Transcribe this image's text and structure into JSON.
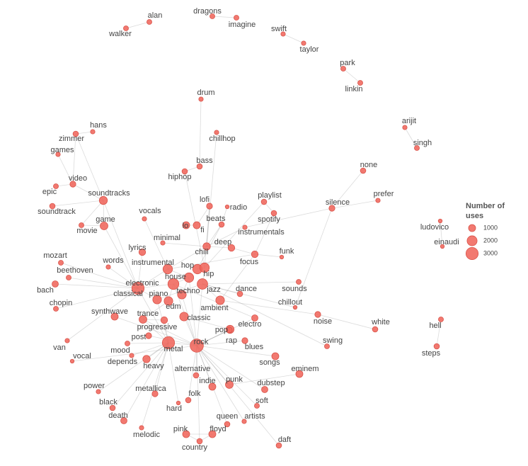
{
  "nodes": [
    {
      "label": "alan",
      "uses": 500
    },
    {
      "label": "walker",
      "uses": 500
    },
    {
      "label": "dragons",
      "uses": 500
    },
    {
      "label": "imagine",
      "uses": 500
    },
    {
      "label": "swift",
      "uses": 400
    },
    {
      "label": "taylor",
      "uses": 400
    },
    {
      "label": "park",
      "uses": 500
    },
    {
      "label": "linkin",
      "uses": 500
    },
    {
      "label": "arijit",
      "uses": 400
    },
    {
      "label": "singh",
      "uses": 500
    },
    {
      "label": "drum",
      "uses": 400
    },
    {
      "label": "chillhop",
      "uses": 400
    },
    {
      "label": "hans",
      "uses": 400
    },
    {
      "label": "zimmer",
      "uses": 600
    },
    {
      "label": "games",
      "uses": 400
    },
    {
      "label": "bass",
      "uses": 600
    },
    {
      "label": "hiphop",
      "uses": 600
    },
    {
      "label": "none",
      "uses": 600
    },
    {
      "label": "video",
      "uses": 700
    },
    {
      "label": "epic",
      "uses": 500
    },
    {
      "label": "soundtracks",
      "uses": 1300
    },
    {
      "label": "prefer",
      "uses": 400
    },
    {
      "label": "playlist",
      "uses": 600
    },
    {
      "label": "silence",
      "uses": 700
    },
    {
      "label": "lofi",
      "uses": 700
    },
    {
      "label": "radio",
      "uses": 300
    },
    {
      "label": "soundtrack",
      "uses": 600
    },
    {
      "label": "game",
      "uses": 1200
    },
    {
      "label": "beats",
      "uses": 600
    },
    {
      "label": "spotify",
      "uses": 600
    },
    {
      "label": "vocals",
      "uses": 400
    },
    {
      "label": "minimal",
      "uses": 400
    },
    {
      "label": "movie",
      "uses": 500
    },
    {
      "label": "lo",
      "uses": 1000
    },
    {
      "label": "fi",
      "uses": 1000
    },
    {
      "label": "instrumentals",
      "uses": 400
    },
    {
      "label": "ludovico",
      "uses": 300
    },
    {
      "label": "einaudi",
      "uses": 300
    },
    {
      "label": "deep",
      "uses": 900
    },
    {
      "label": "lyrics",
      "uses": 900
    },
    {
      "label": "chill",
      "uses": 1100
    },
    {
      "label": "funk",
      "uses": 300
    },
    {
      "label": "focus",
      "uses": 900
    },
    {
      "label": "mozart",
      "uses": 500
    },
    {
      "label": "words",
      "uses": 400
    },
    {
      "label": "instrumental",
      "uses": 1800
    },
    {
      "label": "hop",
      "uses": 1800
    },
    {
      "label": "hip",
      "uses": 1800
    },
    {
      "label": "beethoven",
      "uses": 500
    },
    {
      "label": "house",
      "uses": 1800
    },
    {
      "label": "electronic",
      "uses": 2400
    },
    {
      "label": "jazz",
      "uses": 2200
    },
    {
      "label": "bach",
      "uses": 800
    },
    {
      "label": "classical",
      "uses": 3000
    },
    {
      "label": "techno",
      "uses": 1500
    },
    {
      "label": "dance",
      "uses": 600
    },
    {
      "label": "sounds",
      "uses": 500
    },
    {
      "label": "piano",
      "uses": 1500
    },
    {
      "label": "edm",
      "uses": 1500
    },
    {
      "label": "ambient",
      "uses": 1500
    },
    {
      "label": "chillout",
      "uses": 300
    },
    {
      "label": "chopin",
      "uses": 500
    },
    {
      "label": "synthwave",
      "uses": 1000
    },
    {
      "label": "trance",
      "uses": 1200
    },
    {
      "label": "classic",
      "uses": 1500
    },
    {
      "label": "noise",
      "uses": 700
    },
    {
      "label": "electro",
      "uses": 800
    },
    {
      "label": "progressive",
      "uses": 900
    },
    {
      "label": "white",
      "uses": 600
    },
    {
      "label": "pop",
      "uses": 1300
    },
    {
      "label": "hell",
      "uses": 500
    },
    {
      "label": "rap",
      "uses": 700
    },
    {
      "label": "post",
      "uses": 700
    },
    {
      "label": "rock",
      "uses": 3500
    },
    {
      "label": "swing",
      "uses": 500
    },
    {
      "label": "mood",
      "uses": 500
    },
    {
      "label": "blues",
      "uses": 700
    },
    {
      "label": "metal",
      "uses": 3000
    },
    {
      "label": "van",
      "uses": 400
    },
    {
      "label": "steps",
      "uses": 600
    },
    {
      "label": "depends",
      "uses": 400
    },
    {
      "label": "songs",
      "uses": 1000
    },
    {
      "label": "vocal",
      "uses": 300
    },
    {
      "label": "heavy",
      "uses": 1100
    },
    {
      "label": "alternative",
      "uses": 600
    },
    {
      "label": "eminem",
      "uses": 1000
    },
    {
      "label": "punk",
      "uses": 1200
    },
    {
      "label": "indie",
      "uses": 1000
    },
    {
      "label": "dubstep",
      "uses": 800
    },
    {
      "label": "power",
      "uses": 400
    },
    {
      "label": "metallica",
      "uses": 700
    },
    {
      "label": "folk",
      "uses": 600
    },
    {
      "label": "soft",
      "uses": 500
    },
    {
      "label": "black",
      "uses": 600
    },
    {
      "label": "hard",
      "uses": 300
    },
    {
      "label": "death",
      "uses": 800
    },
    {
      "label": "queen",
      "uses": 600
    },
    {
      "label": "artists",
      "uses": 400
    },
    {
      "label": "melodic",
      "uses": 400
    },
    {
      "label": "pink",
      "uses": 1000
    },
    {
      "label": "floyd",
      "uses": 1000
    },
    {
      "label": "daft",
      "uses": 600
    },
    {
      "label": "country",
      "uses": 600
    }
  ],
  "legend": {
    "title": "Number of uses",
    "values": [
      1000,
      2000,
      3000
    ]
  }
}
